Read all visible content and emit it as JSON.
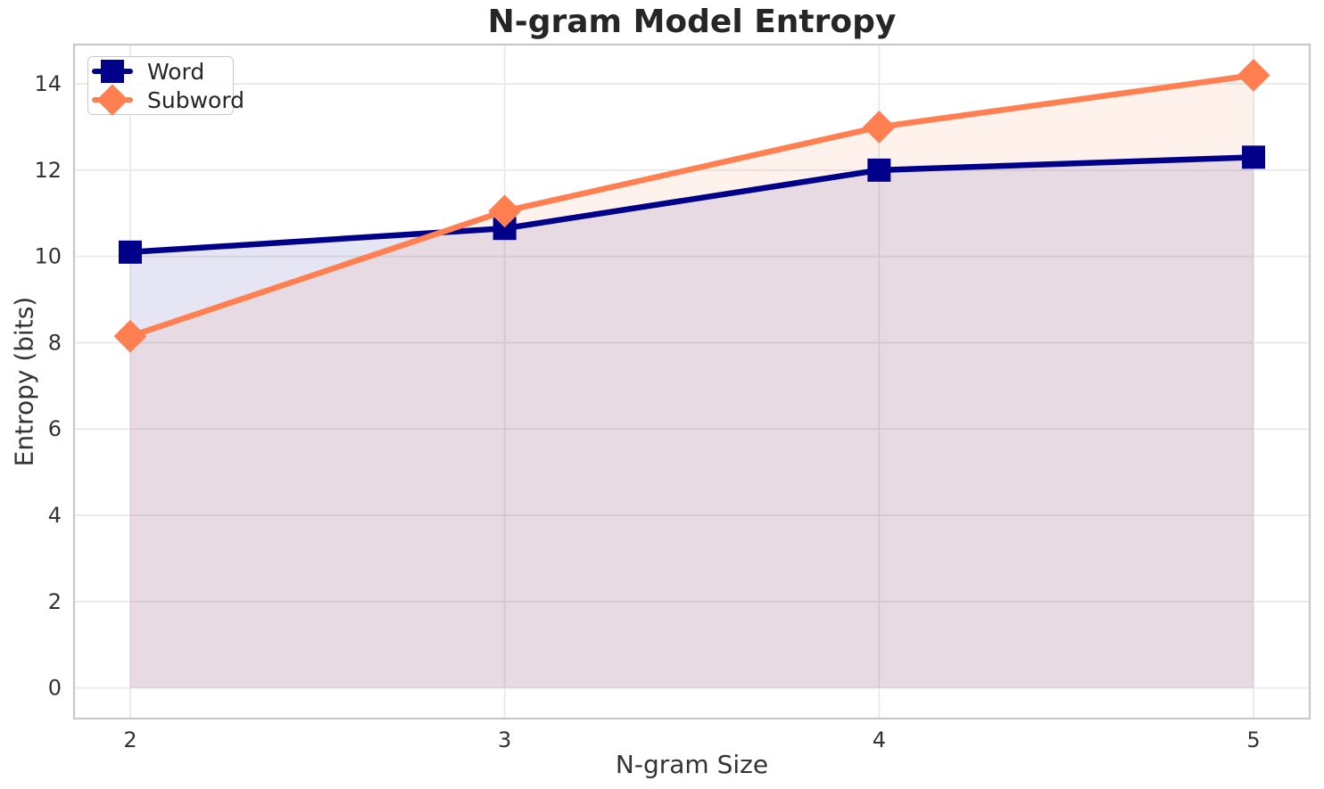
{
  "chart_data": {
    "type": "line",
    "title": "N-gram Model Entropy",
    "xlabel": "N-gram Size",
    "ylabel": "Entropy (bits)",
    "x": [
      2,
      3,
      4,
      5
    ],
    "xticks": [
      "2",
      "3",
      "4",
      "5"
    ],
    "yticks": [
      0,
      2,
      4,
      6,
      8,
      10,
      12,
      14
    ],
    "xlim": [
      1.85,
      5.15
    ],
    "ylim": [
      -0.71,
      14.91
    ],
    "grid": true,
    "legend_position": "upper-left",
    "fill_baseline": 0,
    "fill_alpha": 0.1,
    "series": [
      {
        "name": "Word",
        "marker": "square",
        "color": "#00008B",
        "values": [
          10.1,
          10.65,
          12.0,
          12.3
        ]
      },
      {
        "name": "Subword",
        "marker": "diamond",
        "color": "#FF7F50",
        "values": [
          8.15,
          11.05,
          13.0,
          14.2
        ]
      }
    ],
    "style": {
      "background": "#FFFFFF",
      "grid_color": "#E9E9E9",
      "spine_color": "#C8C8C8",
      "tick_label_color": "#333333",
      "title_color": "#262626"
    }
  }
}
